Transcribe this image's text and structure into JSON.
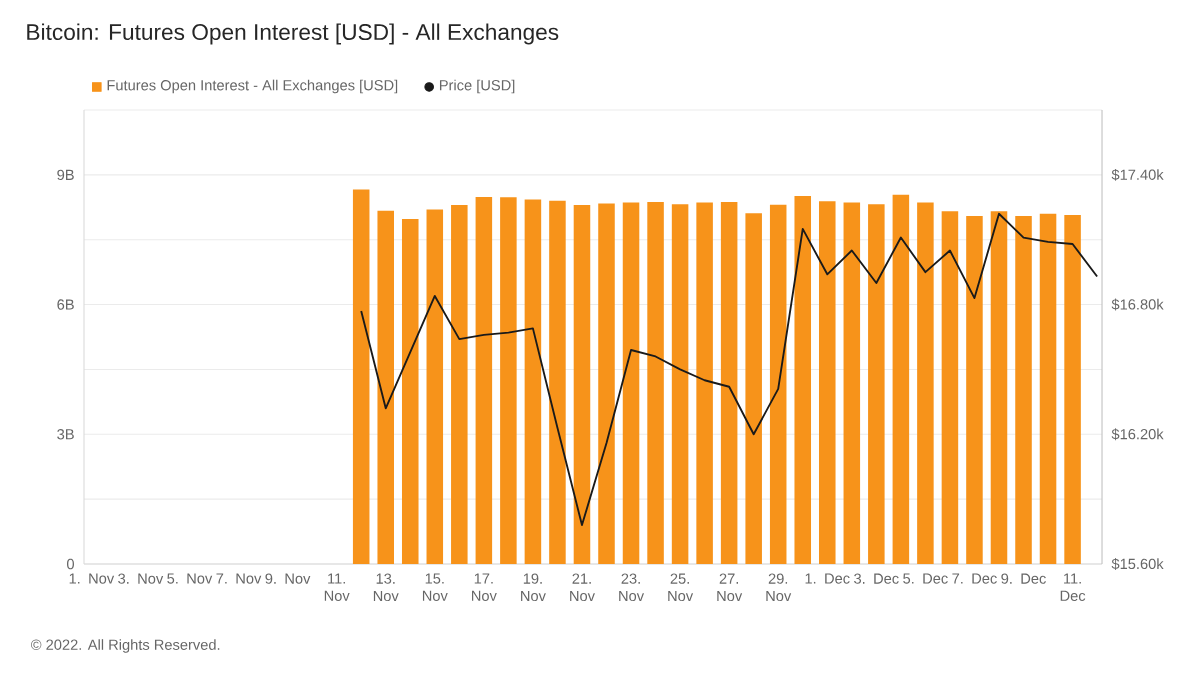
{
  "chart_data": {
    "type": "bar",
    "title": "Bitcoin: Futures Open Interest [USD] - All Exchanges",
    "categories": [
      "1. Nov",
      null,
      "3. Nov",
      null,
      "5. Nov",
      null,
      "7. Nov",
      null,
      "9. Nov",
      null,
      "11. Nov",
      null,
      "13. Nov",
      null,
      "15. Nov",
      null,
      "17. Nov",
      null,
      "19. Nov",
      null,
      "21. Nov",
      null,
      "23. Nov",
      null,
      "25. Nov",
      null,
      "27. Nov",
      null,
      "29. Nov",
      null,
      "1. Dec",
      null,
      "3. Dec",
      null,
      "5. Dec",
      null,
      "7. Dec",
      null,
      "9. Dec",
      null,
      "11. Dec",
      null
    ],
    "series": [
      {
        "name": "Futures Open Interest - All Exchanges [USD]",
        "color": "#f7931a",
        "values": [
          null,
          null,
          null,
          null,
          null,
          null,
          null,
          null,
          null,
          null,
          null,
          8.66,
          8.17,
          7.98,
          8.2,
          8.3,
          8.49,
          8.48,
          8.43,
          8.4,
          8.3,
          8.34,
          8.36,
          8.37,
          8.32,
          8.36,
          8.37,
          8.11,
          8.31,
          8.51,
          8.39,
          8.36,
          8.32,
          8.54,
          8.36,
          8.16,
          8.05,
          8.16,
          8.05,
          8.1,
          8.07,
          null
        ]
      },
      {
        "name": "Price [USD]",
        "type": "line",
        "color": "#1a1a1a",
        "axis": "y2",
        "values": [
          null,
          null,
          null,
          null,
          null,
          null,
          null,
          null,
          null,
          null,
          null,
          16770,
          16320,
          16580,
          16840,
          16640,
          16660,
          16670,
          16690,
          16230,
          15780,
          16160,
          16590,
          16560,
          16500,
          16450,
          16420,
          16200,
          16410,
          17150,
          16940,
          17050,
          16900,
          17110,
          16950,
          17050,
          16830,
          17220,
          17110,
          17090,
          17080,
          16930
        ]
      }
    ],
    "ylim": [
      0,
      10.5
    ],
    "yticks": [
      0,
      {
        "value": 1.5,
        "label": null
      },
      {
        "value": 3,
        "label": "3B"
      },
      {
        "value": 4.5,
        "label": null
      },
      {
        "value": 6,
        "label": "6B"
      },
      {
        "value": 7.5,
        "label": null
      },
      {
        "value": 9,
        "label": "9B"
      },
      {
        "value": 10.5,
        "label": null
      }
    ],
    "y2lim": [
      15600,
      17700
    ],
    "y2ticks": [
      {
        "value": 15600,
        "label": "$15.60k"
      },
      {
        "value": 16200,
        "label": "$16.20k"
      },
      {
        "value": 16800,
        "label": "$16.80k"
      },
      {
        "value": 17400,
        "label": "$17.40k"
      }
    ],
    "grid": "y",
    "legend": "top left",
    "annotations": [
      "© 2022. All Rights Reserved."
    ]
  }
}
